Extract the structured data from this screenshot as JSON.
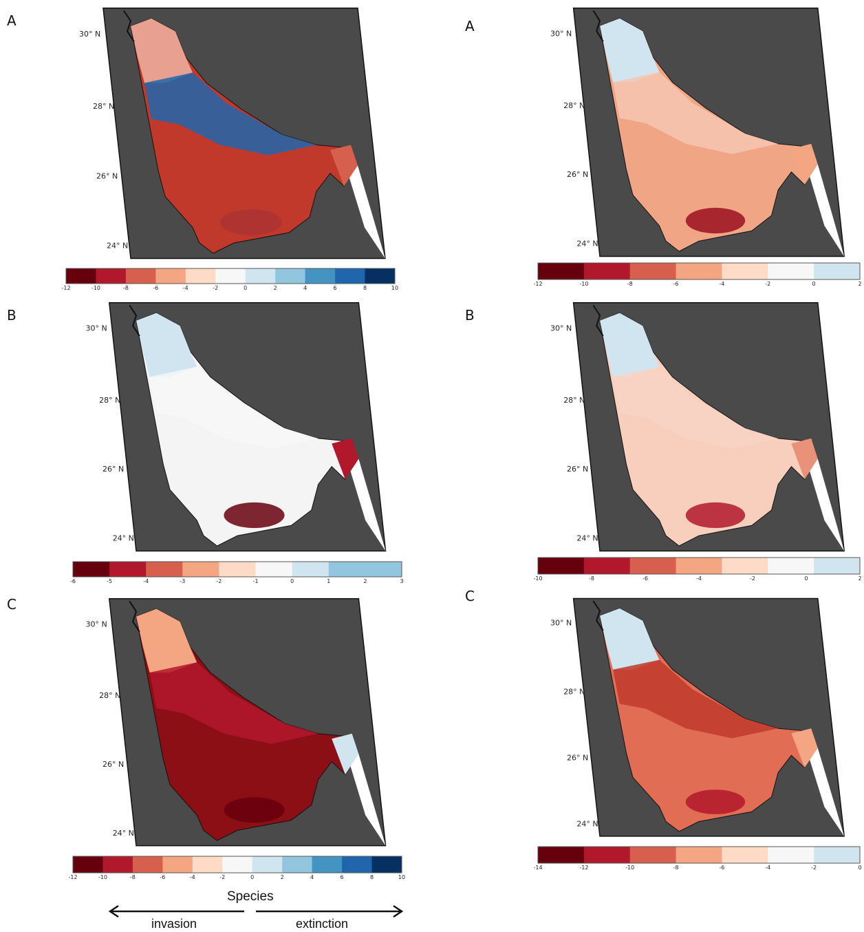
{
  "panels": [
    {
      "id": "left-A",
      "letter": "A",
      "lat_labels": [
        "30° N",
        "28° N",
        "26° N",
        "24° N"
      ],
      "legend": {
        "ticks": [
          "-12",
          "-10",
          "-8",
          "-6",
          "-4",
          "-2",
          "0",
          "2",
          "4",
          "6",
          "8",
          "10"
        ],
        "colors": [
          "#67000d",
          "#b2182b",
          "#d6604d",
          "#f4a582",
          "#fddbc7",
          "#f7f7f7",
          "#d1e5f0",
          "#92c5de",
          "#4393c3",
          "#2166ac",
          "#053061"
        ]
      }
    },
    {
      "id": "left-B",
      "letter": "B",
      "lat_labels": [
        "30° N",
        "28° N",
        "26° N",
        "24° N"
      ],
      "legend": {
        "ticks": [
          "-6",
          "-5",
          "-4",
          "-3",
          "-2",
          "-1",
          "0",
          "1",
          "2",
          "3"
        ],
        "colors": [
          "#67000d",
          "#b2182b",
          "#d6604d",
          "#f4a582",
          "#fddbc7",
          "#f7f7f7",
          "#d1e5f0",
          "#92c5de",
          "#92c5de"
        ]
      }
    },
    {
      "id": "left-C",
      "letter": "C",
      "lat_labels": [
        "30° N",
        "28° N",
        "26° N",
        "24° N"
      ],
      "legend": {
        "ticks": [
          "-12",
          "-10",
          "-8",
          "-6",
          "-4",
          "-2",
          "0",
          "2",
          "4",
          "6",
          "8",
          "10"
        ],
        "colors": [
          "#67000d",
          "#b2182b",
          "#d6604d",
          "#f4a582",
          "#fddbc7",
          "#f7f7f7",
          "#d1e5f0",
          "#92c5de",
          "#4393c3",
          "#2166ac",
          "#053061"
        ]
      }
    },
    {
      "id": "right-A",
      "letter": "A",
      "lat_labels": [
        "30° N",
        "28° N",
        "26° N",
        "24° N"
      ],
      "legend": {
        "ticks": [
          "-12",
          "-10",
          "-8",
          "-6",
          "-4",
          "-2",
          "0",
          "2"
        ],
        "colors": [
          "#67000d",
          "#b2182b",
          "#d6604d",
          "#f4a582",
          "#fddbc7",
          "#f7f7f7",
          "#d1e5f0"
        ]
      }
    },
    {
      "id": "right-B",
      "letter": "B",
      "lat_labels": [
        "30° N",
        "28° N",
        "26° N",
        "24° N"
      ],
      "legend": {
        "ticks": [
          "-10",
          "-8",
          "-6",
          "-4",
          "-2",
          "0",
          "2"
        ],
        "colors": [
          "#67000d",
          "#b2182b",
          "#d6604d",
          "#f4a582",
          "#fddbc7",
          "#f7f7f7",
          "#d1e5f0"
        ]
      }
    },
    {
      "id": "right-C",
      "letter": "C",
      "lat_labels": [
        "30° N",
        "28° N",
        "26° N",
        "24° N"
      ],
      "legend": {
        "ticks": [
          "-14",
          "-12",
          "-10",
          "-8",
          "-6",
          "-4",
          "-2",
          "0"
        ],
        "colors": [
          "#67000d",
          "#b2182b",
          "#d6604d",
          "#f4a582",
          "#fddbc7",
          "#f7f7f7",
          "#d1e5f0"
        ]
      }
    }
  ],
  "footer": {
    "title": "Species",
    "left_label": "invasion",
    "right_label": "extinction"
  },
  "colors": {
    "land": "#4a4a4a",
    "coast": "#111111"
  }
}
